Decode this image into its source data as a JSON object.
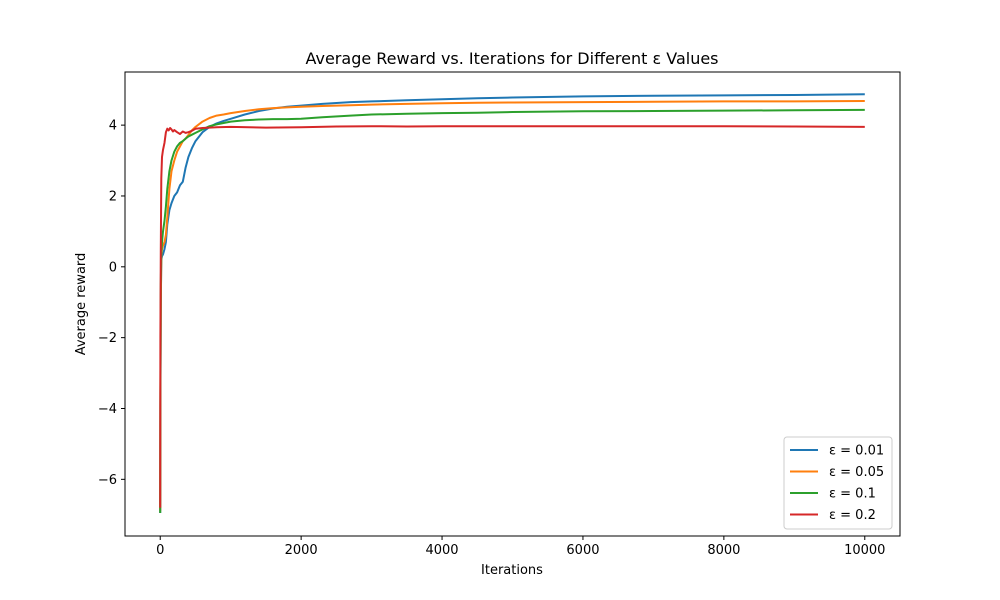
{
  "chart_data": {
    "type": "line",
    "title": "Average Reward vs. Iterations for Different ε Values",
    "xlabel": "Iterations",
    "ylabel": "Average reward",
    "xlim": [
      -500,
      10500
    ],
    "ylim": [
      -7.6,
      5.5
    ],
    "xticks": [
      0,
      2000,
      4000,
      6000,
      8000,
      10000
    ],
    "yticks": [
      -6,
      -4,
      -2,
      0,
      2,
      4
    ],
    "ytick_labels": [
      "−6",
      "−4",
      "−2",
      "0",
      "2",
      "4"
    ],
    "grid": false,
    "legend_position": "lower-right",
    "series": [
      {
        "name": "ε = 0.01",
        "color": "#1f77b4",
        "x": [
          0,
          3,
          8,
          15,
          25,
          40,
          60,
          80,
          100,
          130,
          160,
          200,
          240,
          280,
          320,
          360,
          400,
          450,
          500,
          600,
          700,
          800,
          900,
          1000,
          1200,
          1400,
          1600,
          1800,
          2000,
          2300,
          2700,
          3000,
          3500,
          4000,
          4500,
          5000,
          6000,
          7000,
          8000,
          9000,
          10000
        ],
        "y": [
          -6.95,
          -4.0,
          -1.0,
          0.2,
          0.3,
          0.35,
          0.5,
          0.7,
          1.2,
          1.6,
          1.8,
          2.0,
          2.1,
          2.3,
          2.4,
          2.8,
          3.1,
          3.35,
          3.55,
          3.8,
          3.95,
          4.05,
          4.12,
          4.18,
          4.3,
          4.4,
          4.47,
          4.52,
          4.55,
          4.6,
          4.65,
          4.67,
          4.7,
          4.73,
          4.76,
          4.78,
          4.81,
          4.83,
          4.84,
          4.85,
          4.87
        ]
      },
      {
        "name": "ε = 0.05",
        "color": "#ff7f0e",
        "x": [
          0,
          3,
          8,
          15,
          25,
          40,
          60,
          80,
          100,
          130,
          160,
          200,
          240,
          280,
          320,
          360,
          400,
          450,
          500,
          600,
          700,
          800,
          900,
          1000,
          1200,
          1400,
          1600,
          1800,
          2000,
          2300,
          2700,
          3000,
          3500,
          4000,
          4500,
          5000,
          6000,
          7000,
          8000,
          9000,
          10000
        ],
        "y": [
          -6.9,
          -3.5,
          -1.0,
          0.3,
          0.5,
          0.6,
          0.7,
          0.9,
          1.4,
          2.2,
          2.7,
          3.0,
          3.25,
          3.4,
          3.55,
          3.62,
          3.72,
          3.85,
          3.95,
          4.1,
          4.2,
          4.27,
          4.3,
          4.34,
          4.4,
          4.45,
          4.48,
          4.5,
          4.52,
          4.54,
          4.56,
          4.58,
          4.6,
          4.62,
          4.63,
          4.64,
          4.65,
          4.66,
          4.67,
          4.67,
          4.68
        ]
      },
      {
        "name": "ε = 0.1",
        "color": "#2ca02c",
        "x": [
          0,
          3,
          8,
          15,
          25,
          40,
          60,
          80,
          100,
          130,
          160,
          200,
          240,
          280,
          320,
          360,
          400,
          450,
          500,
          600,
          700,
          800,
          900,
          1000,
          1200,
          1400,
          1600,
          1800,
          2000,
          2300,
          2700,
          3000,
          3500,
          4000,
          4500,
          5000,
          6000,
          7000,
          8000,
          9000,
          10000
        ],
        "y": [
          -6.95,
          -4.0,
          -0.5,
          0.4,
          0.7,
          1.0,
          1.3,
          1.7,
          2.2,
          2.7,
          3.0,
          3.25,
          3.4,
          3.5,
          3.55,
          3.62,
          3.68,
          3.73,
          3.78,
          3.88,
          3.97,
          4.02,
          4.06,
          4.1,
          4.14,
          4.16,
          4.17,
          4.17,
          4.18,
          4.22,
          4.27,
          4.3,
          4.32,
          4.34,
          4.35,
          4.37,
          4.39,
          4.4,
          4.41,
          4.42,
          4.43
        ]
      },
      {
        "name": "ε = 0.2",
        "color": "#d62728",
        "x": [
          0,
          3,
          8,
          15,
          25,
          40,
          60,
          80,
          100,
          120,
          140,
          160,
          180,
          200,
          240,
          280,
          320,
          360,
          400,
          450,
          500,
          600,
          700,
          800,
          1000,
          1500,
          2000,
          2500,
          3000,
          3500,
          4000,
          5000,
          6000,
          7000,
          8000,
          9000,
          10000
        ],
        "y": [
          -6.8,
          -2.0,
          0.5,
          2.5,
          3.1,
          3.3,
          3.5,
          3.8,
          3.9,
          3.85,
          3.92,
          3.88,
          3.82,
          3.86,
          3.8,
          3.75,
          3.82,
          3.78,
          3.8,
          3.84,
          3.9,
          3.92,
          3.93,
          3.94,
          3.95,
          3.93,
          3.94,
          3.96,
          3.97,
          3.96,
          3.97,
          3.97,
          3.97,
          3.97,
          3.97,
          3.96,
          3.95
        ]
      }
    ]
  }
}
